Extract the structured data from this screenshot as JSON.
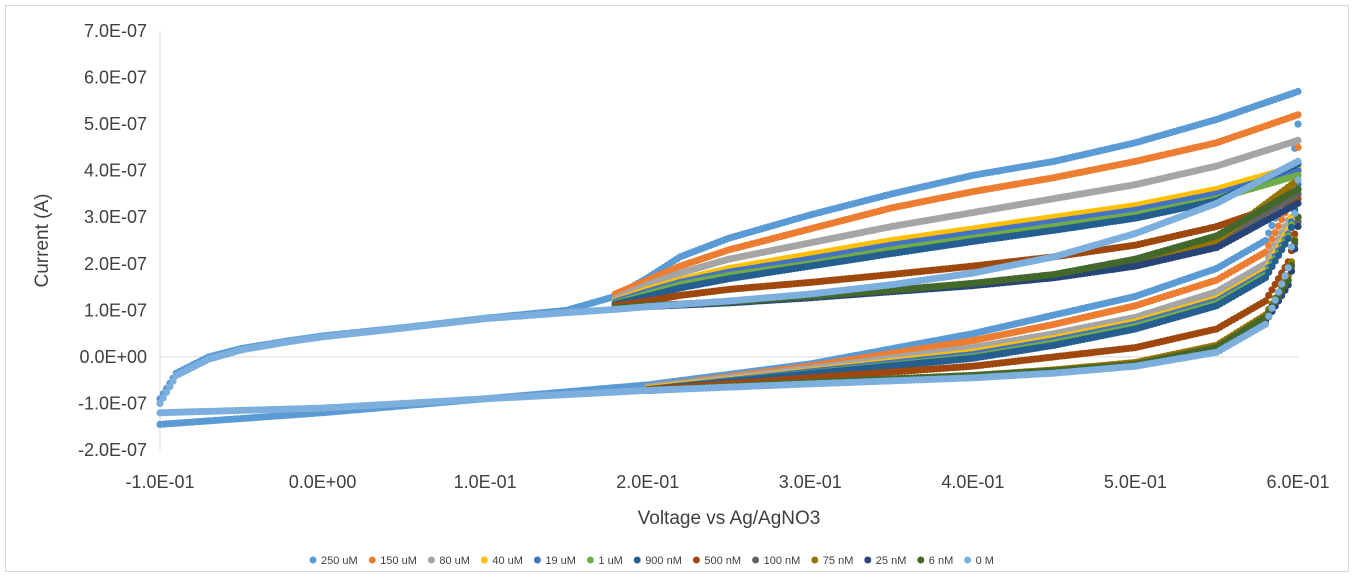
{
  "chart_data": {
    "type": "scatter",
    "title": "",
    "xlabel": "Voltage vs Ag/AgNO3",
    "ylabel": "Current (A)",
    "xlim": [
      -0.1,
      0.6
    ],
    "ylim": [
      -2e-07,
      7e-07
    ],
    "x_ticks": [
      -0.1,
      0.0,
      0.1,
      0.2,
      0.3,
      0.4,
      0.5,
      0.6
    ],
    "x_tick_labels": [
      "-1.0E-01",
      "0.0E+00",
      "1.0E-01",
      "2.0E-01",
      "3.0E-01",
      "4.0E-01",
      "5.0E-01",
      "6.0E-01"
    ],
    "y_ticks": [
      -2e-07,
      -1e-07,
      0,
      1e-07,
      2e-07,
      3e-07,
      4e-07,
      5e-07,
      6e-07,
      7e-07
    ],
    "y_tick_labels": [
      "-2.0E-07",
      "-1.0E-07",
      "0.0E+00",
      "1.0E-07",
      "2.0E-07",
      "3.0E-07",
      "4.0E-07",
      "5.0E-07",
      "6.0E-07",
      "7.0E-07"
    ],
    "grid": false,
    "legend_position": "bottom",
    "series": [
      {
        "name": "250 uM",
        "color": "#5b9bd5",
        "upper": [
          [
            -0.1,
            -0.09
          ],
          [
            -0.09,
            -0.035
          ],
          [
            -0.07,
            0.0
          ],
          [
            -0.05,
            0.018
          ],
          [
            -0.02,
            0.035
          ],
          [
            0.0,
            0.045
          ],
          [
            0.05,
            0.063
          ],
          [
            0.1,
            0.083
          ],
          [
            0.15,
            0.1
          ],
          [
            0.18,
            0.13
          ],
          [
            0.2,
            0.17
          ],
          [
            0.22,
            0.215
          ],
          [
            0.25,
            0.255
          ],
          [
            0.3,
            0.305
          ],
          [
            0.35,
            0.35
          ],
          [
            0.4,
            0.39
          ],
          [
            0.45,
            0.42
          ],
          [
            0.5,
            0.46
          ],
          [
            0.55,
            0.51
          ],
          [
            0.6,
            0.57
          ]
        ],
        "lower": [
          [
            -0.1,
            -0.145
          ],
          [
            0.0,
            -0.12
          ],
          [
            0.1,
            -0.09
          ],
          [
            0.2,
            -0.06
          ],
          [
            0.3,
            -0.015
          ],
          [
            0.4,
            0.05
          ],
          [
            0.45,
            0.09
          ],
          [
            0.5,
            0.13
          ],
          [
            0.55,
            0.19
          ],
          [
            0.58,
            0.25
          ],
          [
            0.595,
            0.37
          ],
          [
            0.6,
            0.5
          ]
        ]
      },
      {
        "name": "150 uM",
        "color": "#ed7d31",
        "upper": [
          [
            0.18,
            0.135
          ],
          [
            0.2,
            0.165
          ],
          [
            0.22,
            0.195
          ],
          [
            0.25,
            0.23
          ],
          [
            0.3,
            0.275
          ],
          [
            0.35,
            0.32
          ],
          [
            0.4,
            0.355
          ],
          [
            0.45,
            0.385
          ],
          [
            0.5,
            0.42
          ],
          [
            0.55,
            0.46
          ],
          [
            0.6,
            0.52
          ]
        ],
        "lower": [
          [
            0.2,
            -0.065
          ],
          [
            0.3,
            -0.02
          ],
          [
            0.4,
            0.035
          ],
          [
            0.45,
            0.07
          ],
          [
            0.5,
            0.11
          ],
          [
            0.55,
            0.165
          ],
          [
            0.58,
            0.225
          ],
          [
            0.595,
            0.33
          ],
          [
            0.6,
            0.45
          ]
        ]
      },
      {
        "name": "80 uM",
        "color": "#a5a5a5",
        "upper": [
          [
            0.18,
            0.125
          ],
          [
            0.2,
            0.155
          ],
          [
            0.22,
            0.18
          ],
          [
            0.25,
            0.21
          ],
          [
            0.3,
            0.245
          ],
          [
            0.35,
            0.28
          ],
          [
            0.4,
            0.31
          ],
          [
            0.45,
            0.34
          ],
          [
            0.5,
            0.37
          ],
          [
            0.55,
            0.41
          ],
          [
            0.6,
            0.465
          ]
        ],
        "lower": [
          [
            0.2,
            -0.065
          ],
          [
            0.3,
            -0.025
          ],
          [
            0.4,
            0.02
          ],
          [
            0.45,
            0.05
          ],
          [
            0.5,
            0.085
          ],
          [
            0.55,
            0.14
          ],
          [
            0.58,
            0.2
          ],
          [
            0.595,
            0.3
          ],
          [
            0.6,
            0.41
          ]
        ]
      },
      {
        "name": "40 uM",
        "color": "#ffc000",
        "upper": [
          [
            0.18,
            0.12
          ],
          [
            0.2,
            0.145
          ],
          [
            0.22,
            0.165
          ],
          [
            0.25,
            0.19
          ],
          [
            0.3,
            0.22
          ],
          [
            0.35,
            0.25
          ],
          [
            0.4,
            0.275
          ],
          [
            0.45,
            0.3
          ],
          [
            0.5,
            0.325
          ],
          [
            0.55,
            0.36
          ],
          [
            0.6,
            0.41
          ]
        ],
        "lower": [
          [
            0.2,
            -0.068
          ],
          [
            0.3,
            -0.03
          ],
          [
            0.4,
            0.01
          ],
          [
            0.45,
            0.04
          ],
          [
            0.5,
            0.075
          ],
          [
            0.55,
            0.125
          ],
          [
            0.58,
            0.185
          ],
          [
            0.595,
            0.28
          ],
          [
            0.6,
            0.38
          ]
        ]
      },
      {
        "name": "19 uM",
        "color": "#4472c4",
        "upper": [
          [
            0.18,
            0.118
          ],
          [
            0.2,
            0.14
          ],
          [
            0.22,
            0.16
          ],
          [
            0.25,
            0.182
          ],
          [
            0.3,
            0.21
          ],
          [
            0.35,
            0.24
          ],
          [
            0.4,
            0.265
          ],
          [
            0.45,
            0.29
          ],
          [
            0.5,
            0.315
          ],
          [
            0.55,
            0.35
          ],
          [
            0.6,
            0.4
          ]
        ],
        "lower": [
          [
            0.2,
            -0.07
          ],
          [
            0.3,
            -0.032
          ],
          [
            0.4,
            0.005
          ],
          [
            0.45,
            0.035
          ],
          [
            0.5,
            0.07
          ],
          [
            0.55,
            0.12
          ],
          [
            0.58,
            0.18
          ],
          [
            0.595,
            0.27
          ],
          [
            0.6,
            0.37
          ]
        ]
      },
      {
        "name": "1 uM",
        "color": "#70ad47",
        "upper": [
          [
            0.18,
            0.115
          ],
          [
            0.2,
            0.135
          ],
          [
            0.22,
            0.155
          ],
          [
            0.25,
            0.175
          ],
          [
            0.3,
            0.2
          ],
          [
            0.35,
            0.23
          ],
          [
            0.4,
            0.255
          ],
          [
            0.45,
            0.28
          ],
          [
            0.5,
            0.305
          ],
          [
            0.55,
            0.34
          ],
          [
            0.6,
            0.39
          ]
        ],
        "lower": [
          [
            0.2,
            -0.07
          ],
          [
            0.3,
            -0.035
          ],
          [
            0.4,
            0.0
          ],
          [
            0.45,
            0.03
          ],
          [
            0.5,
            0.065
          ],
          [
            0.55,
            0.115
          ],
          [
            0.58,
            0.175
          ],
          [
            0.595,
            0.265
          ],
          [
            0.6,
            0.36
          ]
        ]
      },
      {
        "name": "900 nM",
        "color": "#255e91",
        "upper": [
          [
            0.18,
            0.113
          ],
          [
            0.2,
            0.13
          ],
          [
            0.22,
            0.148
          ],
          [
            0.25,
            0.168
          ],
          [
            0.3,
            0.195
          ],
          [
            0.35,
            0.222
          ],
          [
            0.4,
            0.248
          ],
          [
            0.45,
            0.272
          ],
          [
            0.5,
            0.298
          ],
          [
            0.55,
            0.335
          ],
          [
            0.6,
            0.415
          ]
        ],
        "lower": [
          [
            0.2,
            -0.07
          ],
          [
            0.3,
            -0.036
          ],
          [
            0.4,
            -0.003
          ],
          [
            0.45,
            0.025
          ],
          [
            0.5,
            0.06
          ],
          [
            0.55,
            0.11
          ],
          [
            0.58,
            0.17
          ],
          [
            0.595,
            0.26
          ],
          [
            0.6,
            0.35
          ]
        ]
      },
      {
        "name": "500 nM",
        "color": "#9e480e",
        "upper": [
          [
            0.18,
            0.11
          ],
          [
            0.2,
            0.12
          ],
          [
            0.22,
            0.132
          ],
          [
            0.25,
            0.145
          ],
          [
            0.3,
            0.16
          ],
          [
            0.35,
            0.177
          ],
          [
            0.4,
            0.195
          ],
          [
            0.45,
            0.215
          ],
          [
            0.5,
            0.24
          ],
          [
            0.55,
            0.28
          ],
          [
            0.6,
            0.34
          ]
        ],
        "lower": [
          [
            0.2,
            -0.07
          ],
          [
            0.3,
            -0.045
          ],
          [
            0.4,
            -0.02
          ],
          [
            0.45,
            0.0
          ],
          [
            0.5,
            0.02
          ],
          [
            0.55,
            0.06
          ],
          [
            0.58,
            0.12
          ],
          [
            0.595,
            0.21
          ],
          [
            0.6,
            0.3
          ]
        ]
      },
      {
        "name": "100 nM",
        "color": "#636363",
        "upper": [
          [
            0.18,
            0.105
          ],
          [
            0.2,
            0.11
          ],
          [
            0.25,
            0.118
          ],
          [
            0.3,
            0.13
          ],
          [
            0.35,
            0.142
          ],
          [
            0.4,
            0.155
          ],
          [
            0.45,
            0.172
          ],
          [
            0.5,
            0.2
          ],
          [
            0.55,
            0.245
          ],
          [
            0.6,
            0.35
          ]
        ],
        "lower": [
          [
            0.2,
            -0.072
          ],
          [
            0.3,
            -0.055
          ],
          [
            0.4,
            -0.04
          ],
          [
            0.45,
            -0.03
          ],
          [
            0.5,
            -0.015
          ],
          [
            0.55,
            0.02
          ],
          [
            0.58,
            0.08
          ],
          [
            0.595,
            0.17
          ],
          [
            0.6,
            0.29
          ]
        ]
      },
      {
        "name": "75 nM",
        "color": "#997300",
        "upper": [
          [
            0.18,
            0.105
          ],
          [
            0.2,
            0.11
          ],
          [
            0.25,
            0.118
          ],
          [
            0.3,
            0.13
          ],
          [
            0.35,
            0.143
          ],
          [
            0.4,
            0.157
          ],
          [
            0.45,
            0.175
          ],
          [
            0.5,
            0.205
          ],
          [
            0.55,
            0.25
          ],
          [
            0.6,
            0.38
          ]
        ],
        "lower": [
          [
            0.2,
            -0.072
          ],
          [
            0.3,
            -0.055
          ],
          [
            0.4,
            -0.04
          ],
          [
            0.45,
            -0.028
          ],
          [
            0.5,
            -0.012
          ],
          [
            0.55,
            0.025
          ],
          [
            0.58,
            0.09
          ],
          [
            0.595,
            0.18
          ],
          [
            0.6,
            0.3
          ]
        ]
      },
      {
        "name": "25 nM",
        "color": "#264478",
        "upper": [
          [
            0.18,
            0.104
          ],
          [
            0.2,
            0.108
          ],
          [
            0.25,
            0.116
          ],
          [
            0.3,
            0.127
          ],
          [
            0.35,
            0.14
          ],
          [
            0.4,
            0.153
          ],
          [
            0.45,
            0.17
          ],
          [
            0.5,
            0.195
          ],
          [
            0.55,
            0.235
          ],
          [
            0.6,
            0.33
          ]
        ],
        "lower": [
          [
            0.2,
            -0.072
          ],
          [
            0.3,
            -0.056
          ],
          [
            0.4,
            -0.042
          ],
          [
            0.45,
            -0.032
          ],
          [
            0.5,
            -0.018
          ],
          [
            0.55,
            0.015
          ],
          [
            0.58,
            0.075
          ],
          [
            0.595,
            0.16
          ],
          [
            0.6,
            0.28
          ]
        ]
      },
      {
        "name": "6 nM",
        "color": "#43682b",
        "upper": [
          [
            0.18,
            0.105
          ],
          [
            0.2,
            0.11
          ],
          [
            0.25,
            0.118
          ],
          [
            0.3,
            0.13
          ],
          [
            0.35,
            0.143
          ],
          [
            0.4,
            0.158
          ],
          [
            0.45,
            0.177
          ],
          [
            0.5,
            0.21
          ],
          [
            0.55,
            0.26
          ],
          [
            0.6,
            0.36
          ]
        ],
        "lower": [
          [
            0.2,
            -0.072
          ],
          [
            0.3,
            -0.055
          ],
          [
            0.4,
            -0.04
          ],
          [
            0.45,
            -0.03
          ],
          [
            0.5,
            -0.016
          ],
          [
            0.55,
            0.02
          ],
          [
            0.58,
            0.085
          ],
          [
            0.595,
            0.17
          ],
          [
            0.6,
            0.3
          ]
        ]
      },
      {
        "name": "0 M",
        "color": "#7cafdd",
        "upper": [
          [
            -0.1,
            -0.1
          ],
          [
            -0.09,
            -0.04
          ],
          [
            -0.07,
            -0.005
          ],
          [
            -0.05,
            0.015
          ],
          [
            -0.02,
            0.033
          ],
          [
            0.0,
            0.043
          ],
          [
            0.05,
            0.062
          ],
          [
            0.1,
            0.082
          ],
          [
            0.15,
            0.095
          ],
          [
            0.18,
            0.102
          ],
          [
            0.2,
            0.108
          ],
          [
            0.25,
            0.12
          ],
          [
            0.3,
            0.135
          ],
          [
            0.35,
            0.155
          ],
          [
            0.4,
            0.18
          ],
          [
            0.45,
            0.215
          ],
          [
            0.5,
            0.265
          ],
          [
            0.55,
            0.33
          ],
          [
            0.6,
            0.42
          ]
        ],
        "lower": [
          [
            -0.1,
            -0.12
          ],
          [
            0.0,
            -0.11
          ],
          [
            0.1,
            -0.09
          ],
          [
            0.2,
            -0.072
          ],
          [
            0.3,
            -0.058
          ],
          [
            0.4,
            -0.045
          ],
          [
            0.45,
            -0.035
          ],
          [
            0.5,
            -0.02
          ],
          [
            0.55,
            0.01
          ],
          [
            0.58,
            0.07
          ],
          [
            0.595,
            0.2
          ],
          [
            0.6,
            0.38
          ]
        ]
      }
    ]
  }
}
